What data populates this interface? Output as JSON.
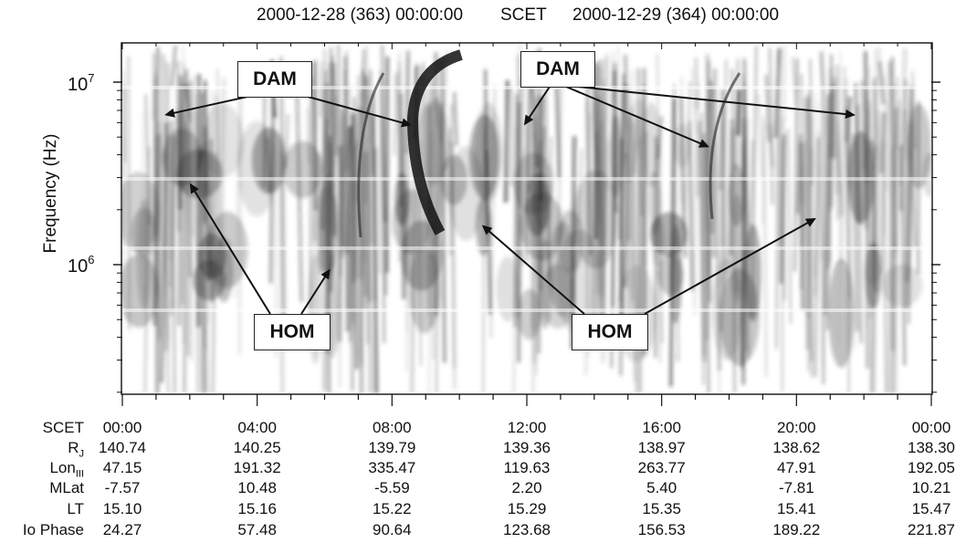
{
  "header": {
    "left_time": "2000-12-28 (363) 00:00:00",
    "center": "SCET",
    "right_time": "2000-12-29 (364) 00:00:00"
  },
  "chart_data": {
    "type": "heatmap",
    "title": "",
    "ylabel": "Frequency (Hz)",
    "yscale": "log",
    "yticks": [
      {
        "base": "10",
        "exp": "7",
        "value": 10000000
      },
      {
        "base": "10",
        "exp": "6",
        "value": 1000000
      }
    ],
    "ylim": [
      180000,
      17000000
    ],
    "xlim_hours": [
      0,
      24
    ],
    "annotations": [
      {
        "label": "DAM",
        "targets": [
          {
            "t": "01:15",
            "f": 6600000
          },
          {
            "t": "08:35",
            "f": 5800000
          }
        ]
      },
      {
        "label": "DAM",
        "targets": [
          {
            "t": "11:55",
            "f": 5800000
          },
          {
            "t": "17:25",
            "f": 4400000
          },
          {
            "t": "21:45",
            "f": 6600000
          }
        ]
      },
      {
        "label": "HOM",
        "targets": [
          {
            "t": "02:00",
            "f": 2800000
          },
          {
            "t": "06:10",
            "f": 950000
          }
        ]
      },
      {
        "label": "HOM",
        "targets": [
          {
            "t": "10:40",
            "f": 1650000
          },
          {
            "t": "20:35",
            "f": 1800000
          }
        ]
      }
    ],
    "ephemeris": {
      "rows": [
        {
          "label": "SCET",
          "sub": "",
          "values": [
            "00:00",
            "04:00",
            "08:00",
            "12:00",
            "16:00",
            "20:00",
            "00:00"
          ]
        },
        {
          "label": "R",
          "sub": "J",
          "values": [
            "140.74",
            "140.25",
            "139.79",
            "139.36",
            "138.97",
            "138.62",
            "138.30"
          ]
        },
        {
          "label": "Lon",
          "sub": "III",
          "values": [
            "47.15",
            "191.32",
            "335.47",
            "119.63",
            "263.77",
            "47.91",
            "192.05"
          ]
        },
        {
          "label": "MLat",
          "sub": "",
          "values": [
            "-7.57",
            "10.48",
            "-5.59",
            "2.20",
            "5.40",
            "-7.81",
            "10.21"
          ]
        },
        {
          "label": "LT",
          "sub": "",
          "values": [
            "15.10",
            "15.16",
            "15.22",
            "15.29",
            "15.35",
            "15.41",
            "15.47"
          ]
        },
        {
          "label": "Io Phase",
          "sub": "",
          "values": [
            "24.27",
            "57.48",
            "90.64",
            "123.68",
            "156.53",
            "189.22",
            "221.87"
          ]
        }
      ]
    }
  }
}
